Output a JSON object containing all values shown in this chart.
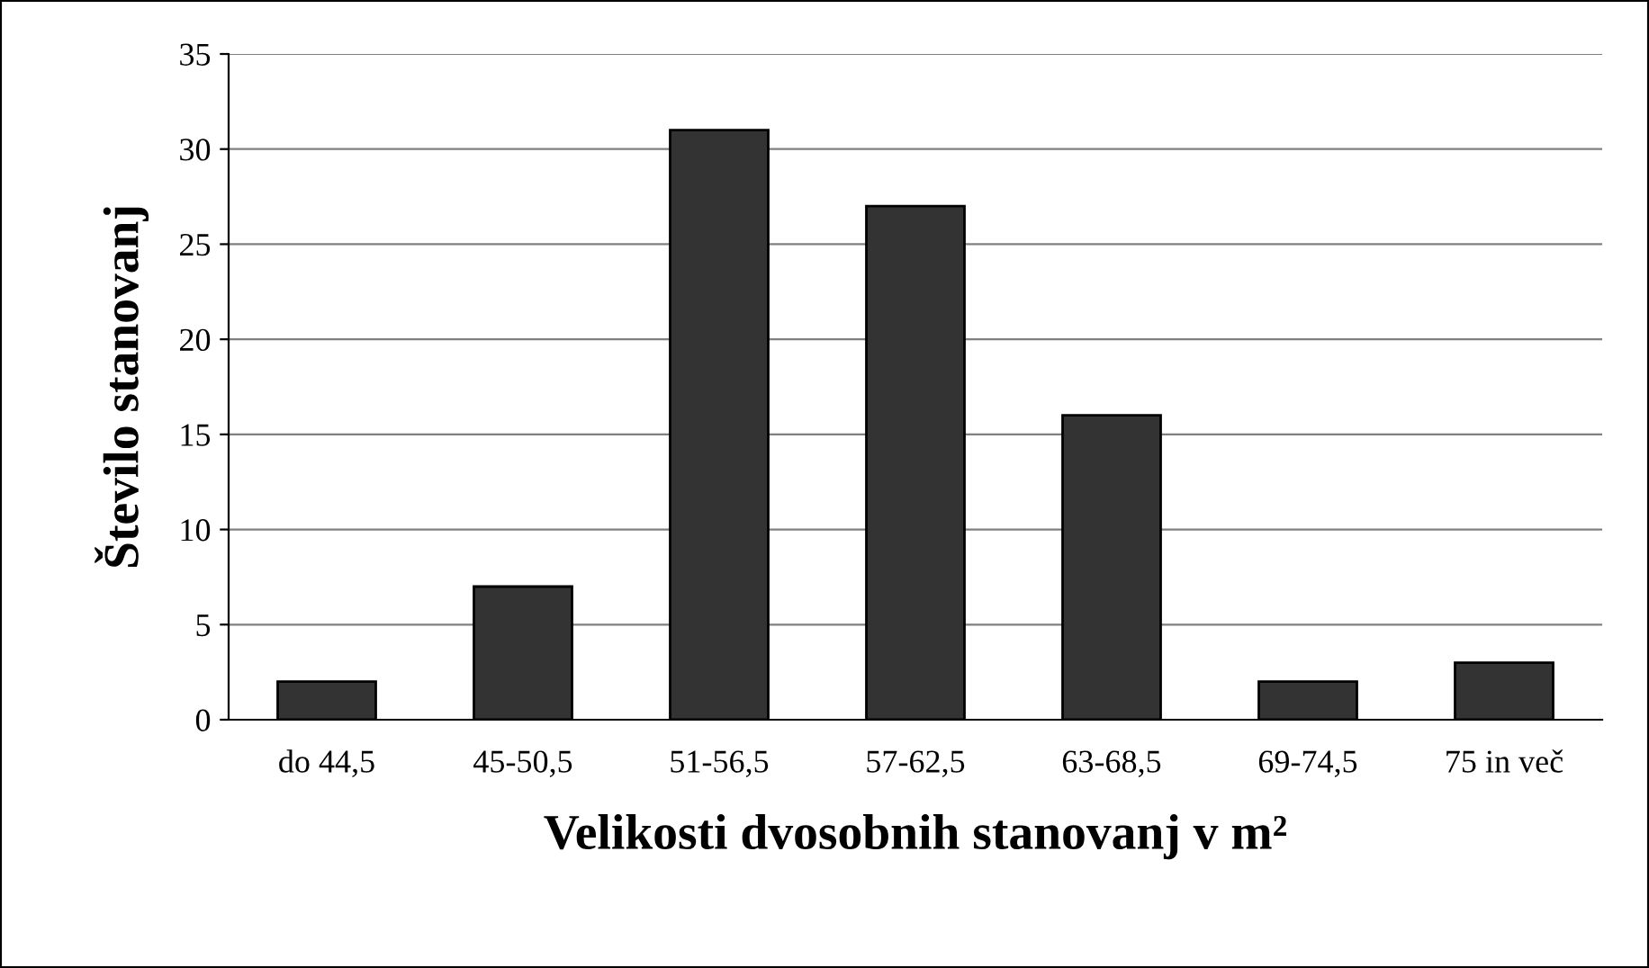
{
  "chart_data": {
    "type": "bar",
    "xlabel": "Velikosti dvosobnih stanovanj v m²",
    "ylabel": "Število stanovanj",
    "categories": [
      "do 44,5",
      "45-50,5",
      "51-56,5",
      "57-62,5",
      "63-68,5",
      "69-74,5",
      "75 in več"
    ],
    "values": [
      2,
      7,
      31,
      27,
      16,
      2,
      3
    ],
    "color": "#333333",
    "ylim": [
      0,
      35
    ],
    "yticks": [
      0,
      5,
      10,
      15,
      20,
      25,
      30,
      35
    ],
    "grid": "y",
    "legend": false
  }
}
